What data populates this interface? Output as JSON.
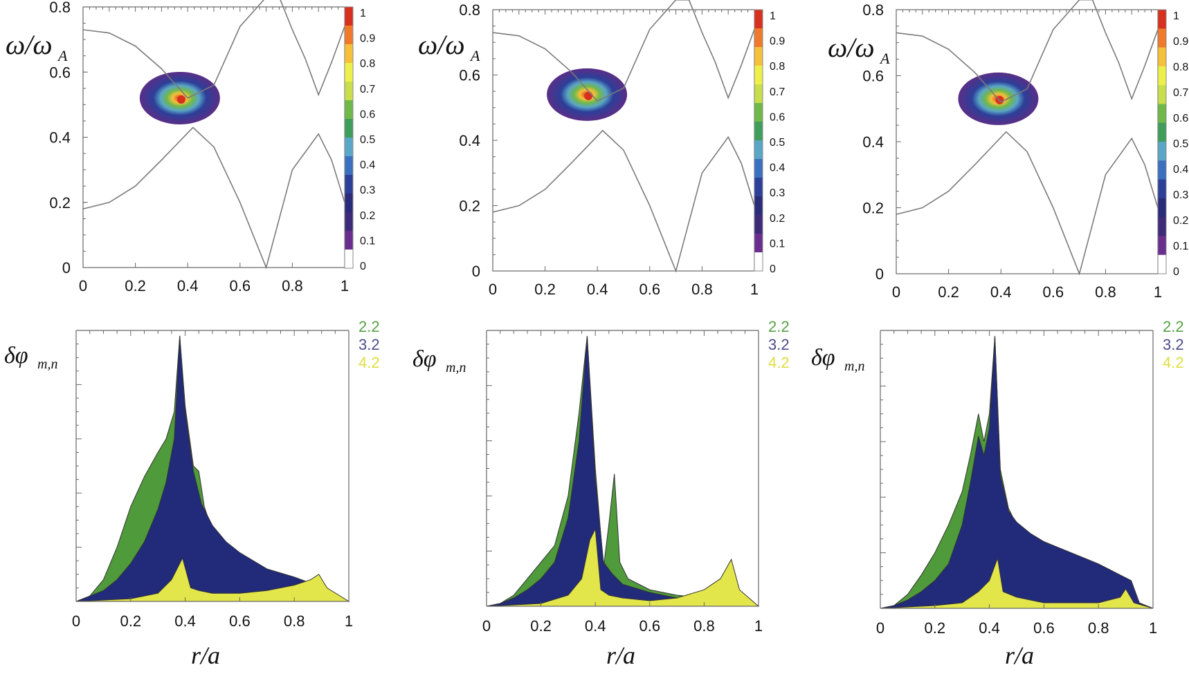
{
  "figure": {
    "top_ylabel": "ω/ω",
    "top_ylabel_sub": "A",
    "bottom_ylabel": "δφ",
    "bottom_ylabel_sub": "m,n",
    "bottom_xlabel": "r/a"
  },
  "colors": {
    "continuum_line": "#7a7a7a",
    "mode_2_2": "#4f9a3a",
    "mode_3_2": "#222a7a",
    "mode_4_2": "#e3e64a",
    "mode_2_2_label": "#55a044",
    "mode_3_2_label": "#4a4a8a",
    "mode_4_2_label": "#dede3c"
  },
  "colorbar": {
    "labels": [
      "1",
      "0.9",
      "0.8",
      "0.7",
      "0.6",
      "0.5",
      "0.4",
      "0.3",
      "0.2",
      "0.1",
      "0"
    ],
    "colors": [
      "#d7301f",
      "#f07a2a",
      "#f5c13a",
      "#eef04a",
      "#c8de4a",
      "#6fb84a",
      "#3f9e5a",
      "#5aa6c6",
      "#3b6fc0",
      "#2c3f99",
      "#2a2c7a",
      "#3d2a78",
      "#6a2e8e",
      "#ffffff"
    ]
  },
  "chart_data": [
    {
      "type": "heatmap",
      "panel": "top-left",
      "ylabel": "ω/ωA",
      "xlim": [
        0,
        1
      ],
      "ylim": [
        0,
        0.8
      ],
      "x_ticks": [
        "0",
        "0.2",
        "0.4",
        "0.6",
        "0.8",
        "1"
      ],
      "y_ticks": [
        "0",
        "0.2",
        "0.4",
        "0.6",
        "0.8"
      ],
      "continuum": {
        "upper_x": [
          0,
          0.1,
          0.2,
          0.3,
          0.4,
          0.5,
          0.6,
          0.7,
          0.75,
          0.8,
          0.85,
          0.9,
          0.95,
          1.0
        ],
        "upper_y": [
          0.73,
          0.72,
          0.68,
          0.61,
          0.52,
          0.56,
          0.74,
          0.83,
          0.83,
          0.73,
          0.64,
          0.53,
          0.63,
          0.74
        ],
        "lower_x": [
          0,
          0.1,
          0.2,
          0.3,
          0.42,
          0.5,
          0.6,
          0.7,
          0.75,
          0.8,
          0.9,
          0.95,
          1.0
        ],
        "lower_y": [
          0.18,
          0.2,
          0.25,
          0.33,
          0.43,
          0.37,
          0.2,
          0,
          0.15,
          0.3,
          0.41,
          0.33,
          0.2
        ]
      },
      "hotspot": {
        "r": 0.37,
        "omega": 0.52,
        "peak": 1.0
      }
    },
    {
      "type": "heatmap",
      "panel": "top-center",
      "ylabel": "ω/ωA",
      "xlim": [
        0,
        1
      ],
      "ylim": [
        0,
        0.8
      ],
      "x_ticks": [
        "0",
        "0.2",
        "0.4",
        "0.6",
        "0.8",
        "1"
      ],
      "y_ticks": [
        "0",
        "0.2",
        "0.4",
        "0.6",
        "0.8"
      ],
      "hotspot": {
        "r": 0.36,
        "omega": 0.54,
        "peak": 1.0
      }
    },
    {
      "type": "heatmap",
      "panel": "top-right",
      "ylabel": "ω/ωA",
      "xlim": [
        0,
        1
      ],
      "ylim": [
        0,
        0.8
      ],
      "x_ticks": [
        "0",
        "0.2",
        "0.4",
        "0.6",
        "0.8",
        "1"
      ],
      "y_ticks": [
        "0",
        "0.2",
        "0.4",
        "0.6",
        "0.8"
      ],
      "hotspot": {
        "r": 0.39,
        "omega": 0.53,
        "peak": 1.0
      }
    },
    {
      "type": "area",
      "panel": "bottom-left",
      "xlabel": "r/a",
      "ylabel": "δφm,n",
      "xlim": [
        0,
        1
      ],
      "ylim": [
        0,
        1
      ],
      "x_ticks": [
        "0",
        "0.2",
        "0.4",
        "0.6",
        "0.8",
        "1"
      ],
      "legend": [
        "2.2",
        "3.2",
        "4.2"
      ],
      "series": [
        {
          "name": "2.2",
          "x": [
            0,
            0.05,
            0.1,
            0.15,
            0.2,
            0.25,
            0.3,
            0.33,
            0.36,
            0.38,
            0.4,
            0.43,
            0.45,
            0.47,
            0.5,
            0.55,
            0.6,
            0.7,
            0.8,
            0.9,
            1.0
          ],
          "values": [
            0,
            0.02,
            0.08,
            0.2,
            0.35,
            0.46,
            0.55,
            0.6,
            0.7,
            0.98,
            0.72,
            0.5,
            0.48,
            0.35,
            0.26,
            0.2,
            0.16,
            0.1,
            0.06,
            0.04,
            0
          ]
        },
        {
          "name": "3.2",
          "x": [
            0,
            0.05,
            0.1,
            0.15,
            0.2,
            0.25,
            0.3,
            0.33,
            0.36,
            0.38,
            0.4,
            0.43,
            0.46,
            0.5,
            0.55,
            0.6,
            0.7,
            0.8,
            0.88,
            0.92,
            1.0
          ],
          "values": [
            0,
            0.02,
            0.04,
            0.08,
            0.14,
            0.22,
            0.34,
            0.44,
            0.6,
            0.98,
            0.7,
            0.48,
            0.36,
            0.28,
            0.22,
            0.18,
            0.12,
            0.09,
            0.06,
            0.03,
            0
          ]
        },
        {
          "name": "4.2",
          "x": [
            0,
            0.2,
            0.3,
            0.35,
            0.39,
            0.42,
            0.45,
            0.5,
            0.6,
            0.7,
            0.8,
            0.86,
            0.89,
            0.92,
            1.0
          ],
          "values": [
            0,
            0.01,
            0.03,
            0.08,
            0.16,
            0.05,
            0.04,
            0.03,
            0.03,
            0.04,
            0.06,
            0.08,
            0.1,
            0.05,
            0
          ]
        }
      ]
    },
    {
      "type": "area",
      "panel": "bottom-center",
      "xlabel": "r/a",
      "ylabel": "δφm,n",
      "xlim": [
        0,
        1
      ],
      "ylim": [
        0,
        1
      ],
      "x_ticks": [
        "0",
        "0.2",
        "0.4",
        "0.6",
        "0.8",
        "1"
      ],
      "legend": [
        "2.2",
        "3.2",
        "4.2"
      ],
      "series": [
        {
          "name": "2.2",
          "x": [
            0,
            0.05,
            0.1,
            0.15,
            0.2,
            0.25,
            0.3,
            0.34,
            0.37,
            0.4,
            0.43,
            0.45,
            0.47,
            0.49,
            0.52,
            0.6,
            0.7,
            0.8,
            0.9,
            1.0
          ],
          "values": [
            0,
            0.01,
            0.04,
            0.1,
            0.16,
            0.22,
            0.4,
            0.7,
            0.98,
            0.5,
            0.14,
            0.3,
            0.48,
            0.16,
            0.1,
            0.06,
            0.04,
            0.03,
            0.02,
            0
          ]
        },
        {
          "name": "3.2",
          "x": [
            0,
            0.05,
            0.1,
            0.15,
            0.2,
            0.25,
            0.3,
            0.34,
            0.37,
            0.4,
            0.43,
            0.46,
            0.5,
            0.6,
            0.7,
            0.8,
            0.9,
            1.0
          ],
          "values": [
            0,
            0.01,
            0.03,
            0.06,
            0.1,
            0.16,
            0.32,
            0.6,
            0.98,
            0.46,
            0.16,
            0.12,
            0.08,
            0.05,
            0.03,
            0.02,
            0.01,
            0
          ]
        },
        {
          "name": "4.2",
          "x": [
            0,
            0.2,
            0.3,
            0.35,
            0.38,
            0.4,
            0.42,
            0.45,
            0.5,
            0.6,
            0.7,
            0.8,
            0.86,
            0.9,
            0.93,
            1.0
          ],
          "values": [
            0,
            0.01,
            0.04,
            0.1,
            0.24,
            0.28,
            0.06,
            0.04,
            0.03,
            0.02,
            0.03,
            0.06,
            0.1,
            0.17,
            0.06,
            0
          ]
        }
      ]
    },
    {
      "type": "area",
      "panel": "bottom-right",
      "xlabel": "r/a",
      "ylabel": "δφm,n",
      "xlim": [
        0,
        1
      ],
      "ylim": [
        0,
        1
      ],
      "x_ticks": [
        "0",
        "0.2",
        "0.4",
        "0.6",
        "0.8",
        "1"
      ],
      "legend": [
        "2.2",
        "3.2",
        "4.2"
      ],
      "series": [
        {
          "name": "2.2",
          "x": [
            0,
            0.05,
            0.1,
            0.15,
            0.2,
            0.25,
            0.3,
            0.33,
            0.36,
            0.38,
            0.4,
            0.42,
            0.44,
            0.47,
            0.5,
            0.6,
            0.7,
            0.8,
            0.9,
            1.0
          ],
          "values": [
            0,
            0.01,
            0.05,
            0.12,
            0.2,
            0.3,
            0.42,
            0.55,
            0.7,
            0.6,
            0.7,
            0.98,
            0.5,
            0.36,
            0.3,
            0.2,
            0.12,
            0.06,
            0.03,
            0
          ]
        },
        {
          "name": "3.2",
          "x": [
            0,
            0.05,
            0.1,
            0.15,
            0.2,
            0.25,
            0.3,
            0.33,
            0.36,
            0.38,
            0.4,
            0.42,
            0.44,
            0.47,
            0.5,
            0.55,
            0.6,
            0.7,
            0.8,
            0.88,
            0.92,
            0.95,
            1.0
          ],
          "values": [
            0,
            0.01,
            0.03,
            0.06,
            0.1,
            0.16,
            0.3,
            0.45,
            0.62,
            0.55,
            0.65,
            0.98,
            0.48,
            0.35,
            0.31,
            0.27,
            0.24,
            0.2,
            0.16,
            0.12,
            0.1,
            0.02,
            0
          ]
        },
        {
          "name": "4.2",
          "x": [
            0,
            0.2,
            0.3,
            0.36,
            0.4,
            0.43,
            0.45,
            0.5,
            0.6,
            0.7,
            0.8,
            0.88,
            0.9,
            0.93,
            1.0
          ],
          "values": [
            0,
            0.01,
            0.02,
            0.06,
            0.1,
            0.18,
            0.06,
            0.04,
            0.02,
            0.02,
            0.02,
            0.04,
            0.07,
            0.02,
            0
          ]
        }
      ]
    }
  ]
}
